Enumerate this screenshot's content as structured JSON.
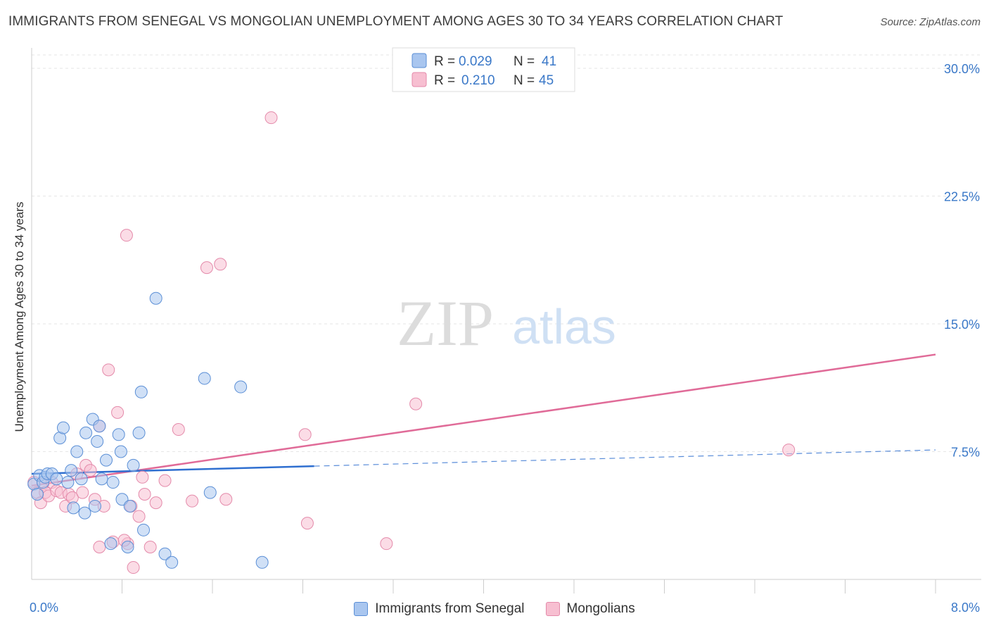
{
  "title": "IMMIGRANTS FROM SENEGAL VS MONGOLIAN UNEMPLOYMENT AMONG AGES 30 TO 34 YEARS CORRELATION CHART",
  "source": "Source: ZipAtlas.com",
  "watermark": {
    "zip": "ZIP",
    "atlas": "atlas"
  },
  "colors": {
    "senegal_fill": "#a9c6ef",
    "senegal_stroke": "#5b8fd6",
    "senegal_line": "#2f6fd0",
    "mongol_fill": "#f7bfd1",
    "mongol_stroke": "#e48aaa",
    "mongol_line": "#e06b98",
    "tick_blue": "#3a78c8"
  },
  "legend": {
    "rows": [
      {
        "r_label": "R =",
        "r_value": "0.029",
        "n_label": "N =",
        "n_value": "41"
      },
      {
        "r_label": "R =",
        "r_value": "0.210",
        "n_label": "N =",
        "n_value": "45"
      }
    ]
  },
  "chart_data": {
    "type": "scatter",
    "title": "IMMIGRANTS FROM SENEGAL VS MONGOLIAN UNEMPLOYMENT AMONG AGES 30 TO 34 YEARS CORRELATION CHART",
    "xlabel": "",
    "ylabel": "Unemployment Among Ages 30 to 34 years",
    "xlim": [
      0,
      8
    ],
    "ylim": [
      0,
      30
    ],
    "x_tick_labels": [
      "0.0%",
      "8.0%"
    ],
    "y_ticks": [
      7.5,
      15,
      22.5,
      30
    ],
    "y_tick_labels": [
      "7.5%",
      "15.0%",
      "22.5%",
      "30.0%"
    ],
    "grid": true,
    "legend_position": "top-center",
    "series": [
      {
        "name": "Immigrants from Senegal",
        "r": 0.029,
        "n": 41,
        "trend": {
          "x": [
            0,
            2.5
          ],
          "y": [
            6.2,
            6.65
          ],
          "dashed_to": [
            8.0,
            7.6
          ]
        },
        "points": [
          [
            0.02,
            5.6
          ],
          [
            0.05,
            5.0
          ],
          [
            0.07,
            6.1
          ],
          [
            0.1,
            5.7
          ],
          [
            0.12,
            6.0
          ],
          [
            0.14,
            6.2
          ],
          [
            0.18,
            6.2
          ],
          [
            0.22,
            5.9
          ],
          [
            0.25,
            8.3
          ],
          [
            0.28,
            8.9
          ],
          [
            0.32,
            5.7
          ],
          [
            0.35,
            6.4
          ],
          [
            0.4,
            7.5
          ],
          [
            0.44,
            5.9
          ],
          [
            0.48,
            8.6
          ],
          [
            0.37,
            4.2
          ],
          [
            0.47,
            3.9
          ],
          [
            0.54,
            9.4
          ],
          [
            0.58,
            8.1
          ],
          [
            0.62,
            5.9
          ],
          [
            0.66,
            7.0
          ],
          [
            0.72,
            5.7
          ],
          [
            0.77,
            8.5
          ],
          [
            0.79,
            7.5
          ],
          [
            0.6,
            9.0
          ],
          [
            0.8,
            4.7
          ],
          [
            0.87,
            4.3
          ],
          [
            0.9,
            6.7
          ],
          [
            0.95,
            8.6
          ],
          [
            0.97,
            11.0
          ],
          [
            0.56,
            4.3
          ],
          [
            0.7,
            2.1
          ],
          [
            0.85,
            1.9
          ],
          [
            0.99,
            2.9
          ],
          [
            1.1,
            16.5
          ],
          [
            1.18,
            1.5
          ],
          [
            1.24,
            1.0
          ],
          [
            1.53,
            11.8
          ],
          [
            1.58,
            5.1
          ],
          [
            1.85,
            11.3
          ],
          [
            2.04,
            1.0
          ]
        ]
      },
      {
        "name": "Mongolians",
        "r": 0.21,
        "n": 45,
        "trend": {
          "x": [
            0,
            8.0
          ],
          "y": [
            5.5,
            13.2
          ]
        },
        "points": [
          [
            0.02,
            5.7
          ],
          [
            0.05,
            5.1
          ],
          [
            0.08,
            4.5
          ],
          [
            0.1,
            5.6
          ],
          [
            0.12,
            5.1
          ],
          [
            0.15,
            4.9
          ],
          [
            0.18,
            5.7
          ],
          [
            0.22,
            5.2
          ],
          [
            0.26,
            5.1
          ],
          [
            0.3,
            4.3
          ],
          [
            0.33,
            5.0
          ],
          [
            0.36,
            4.8
          ],
          [
            0.4,
            6.2
          ],
          [
            0.45,
            5.1
          ],
          [
            0.48,
            6.7
          ],
          [
            0.52,
            6.4
          ],
          [
            0.56,
            4.7
          ],
          [
            0.6,
            9.0
          ],
          [
            0.64,
            4.3
          ],
          [
            0.68,
            12.3
          ],
          [
            0.72,
            2.2
          ],
          [
            0.76,
            9.8
          ],
          [
            0.84,
            20.2
          ],
          [
            0.88,
            4.3
          ],
          [
            0.9,
            0.7
          ],
          [
            0.95,
            3.7
          ],
          [
            0.98,
            6.0
          ],
          [
            1.0,
            5.0
          ],
          [
            1.05,
            1.9
          ],
          [
            1.1,
            4.5
          ],
          [
            1.18,
            5.8
          ],
          [
            1.3,
            8.8
          ],
          [
            1.42,
            4.6
          ],
          [
            1.55,
            18.3
          ],
          [
            1.67,
            18.5
          ],
          [
            1.72,
            4.7
          ],
          [
            0.6,
            1.9
          ],
          [
            0.85,
            2.1
          ],
          [
            2.12,
            27.1
          ],
          [
            2.42,
            8.5
          ],
          [
            2.44,
            3.3
          ],
          [
            3.14,
            2.1
          ],
          [
            3.4,
            10.3
          ],
          [
            6.7,
            7.6
          ],
          [
            0.82,
            2.3
          ]
        ]
      }
    ]
  }
}
